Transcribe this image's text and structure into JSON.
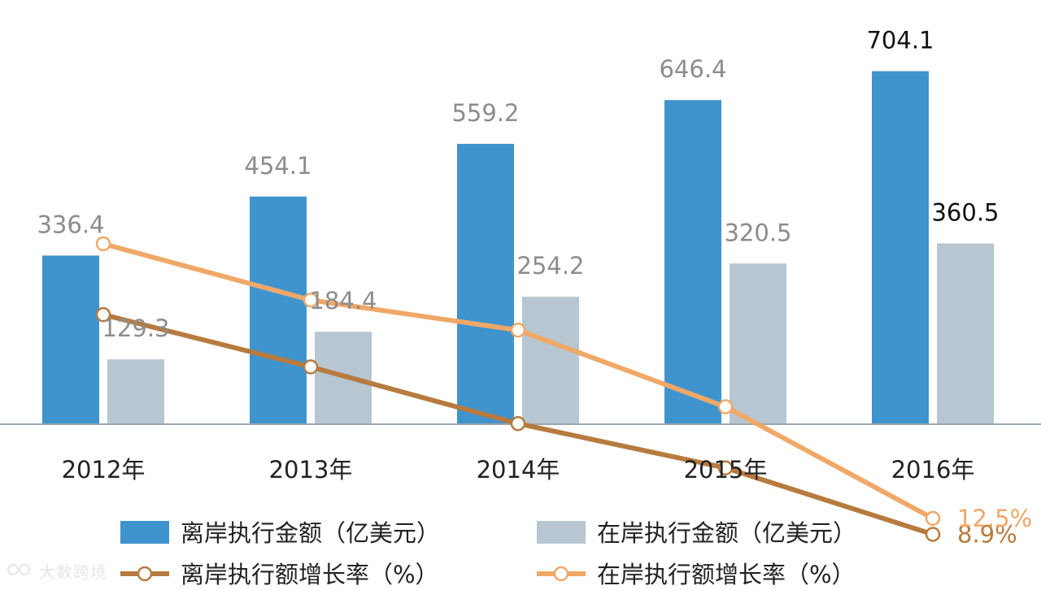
{
  "chart_data": {
    "type": "bar",
    "title": "",
    "xlabel": "",
    "ylabel": "",
    "categories": [
      "2012年",
      "2013年",
      "2014年",
      "2015年",
      "2016年"
    ],
    "bar_ylim": [
      0,
      800
    ],
    "line_ylim": [
      0,
      100
    ],
    "series": [
      {
        "name": "离岸执行金额（亿美元）",
        "kind": "bar",
        "color": "#3f94cd",
        "values": [
          336.4,
          454.1,
          559.2,
          646.4,
          704.1
        ],
        "labels": [
          "336.4",
          "454.1",
          "559.2",
          "646.4",
          "704.1"
        ]
      },
      {
        "name": "在岸执行金额（亿美元）",
        "kind": "bar",
        "color": "#b7c6d0",
        "values": [
          129.3,
          184.4,
          254.2,
          320.5,
          360.5
        ],
        "labels": [
          "129.3",
          "184.4",
          "254.2",
          "320.5",
          "360.5"
        ]
      },
      {
        "name": "离岸执行额增长率（%）",
        "kind": "line",
        "color": "#b77a3f",
        "values": [
          58.5,
          46.7,
          33.9,
          23.9,
          8.9
        ],
        "end_label": "8.9%"
      },
      {
        "name": "在岸执行额增长率（%）",
        "kind": "line",
        "color": "#f0a868",
        "values": [
          74.5,
          61.8,
          55.0,
          37.7,
          12.5
        ],
        "end_label": "12.5%"
      }
    ],
    "grid": false,
    "legend_position": "bottom"
  },
  "watermark": "大数跨境"
}
